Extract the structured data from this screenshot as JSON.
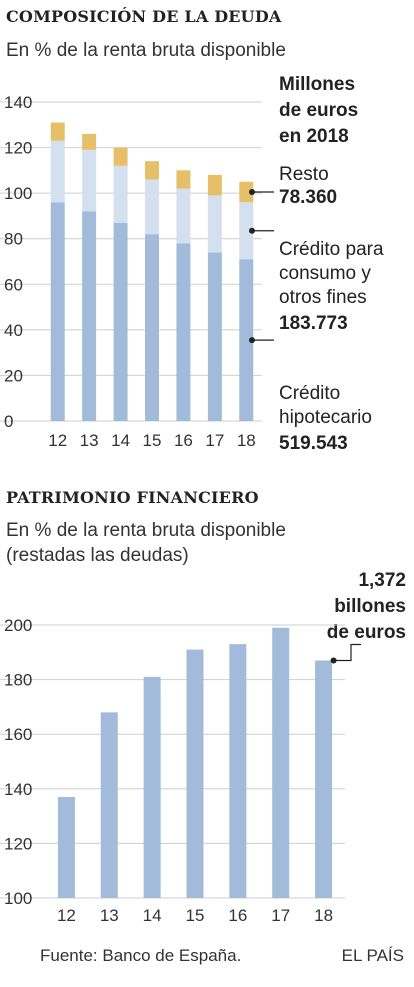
{
  "chart_data": [
    {
      "type": "bar",
      "stacked": true,
      "title": "COMPOSICIÓN DE LA DEUDA",
      "subtitle": "En % de la renta bruta disponible",
      "categories": [
        "12",
        "13",
        "14",
        "15",
        "16",
        "17",
        "18"
      ],
      "series": [
        {
          "name": "Crédito hipotecario",
          "color": "#a3bbda",
          "values": [
            96,
            92,
            87,
            82,
            78,
            74,
            71
          ]
        },
        {
          "name": "Crédito para consumo y otros fines",
          "color": "#d5e0ee",
          "values": [
            27,
            27,
            25,
            24,
            24,
            25,
            25
          ]
        },
        {
          "name": "Resto",
          "color": "#e6bf69",
          "values": [
            8,
            7,
            8,
            8,
            8,
            9,
            9
          ]
        }
      ],
      "ylim": [
        0,
        140
      ],
      "yticks": [
        0,
        20,
        40,
        60,
        80,
        100,
        120,
        140
      ],
      "grid": true,
      "annotation_header": [
        "Millones",
        "de euros",
        "en 2018"
      ],
      "annotations": [
        {
          "label_lines": [
            "Resto"
          ],
          "value": "78.360"
        },
        {
          "label_lines": [
            "Crédito para",
            "consumo y",
            "otros fines"
          ],
          "value": "183.773"
        },
        {
          "label_lines": [
            "Crédito",
            "hipotecario"
          ],
          "value": "519.543"
        }
      ]
    },
    {
      "type": "bar",
      "title": "PATRIMONIO FINANCIERO",
      "subtitle_lines": [
        "En % de la renta bruta disponible",
        "(restadas las deudas)"
      ],
      "categories": [
        "12",
        "13",
        "14",
        "15",
        "16",
        "17",
        "18"
      ],
      "series": [
        {
          "color": "#a3bbda",
          "values": [
            137,
            168,
            181,
            191,
            193,
            199,
            187
          ]
        }
      ],
      "ylim": [
        100,
        200
      ],
      "yticks": [
        100,
        120,
        140,
        160,
        180,
        200
      ],
      "grid": true,
      "annotation_lines": [
        "1,372",
        "billones",
        "de euros"
      ]
    }
  ],
  "footer": {
    "source": "Fuente: Banco de España.",
    "brand": "EL PAÍS"
  }
}
